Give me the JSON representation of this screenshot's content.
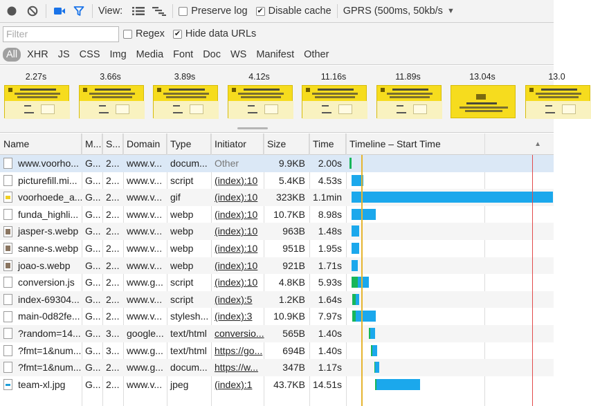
{
  "toolbar": {
    "view_label": "View:",
    "preserve_log_label": "Preserve log",
    "preserve_log_checked": false,
    "disable_cache_label": "Disable cache",
    "disable_cache_checked": true,
    "throttle_value": "GPRS (500ms, 50kb/s",
    "icons": [
      "record-icon",
      "clear-icon",
      "video-camera-icon",
      "filter-icon",
      "large-rows-icon",
      "overview-icon",
      "dropdown-arrow-icon"
    ]
  },
  "filter": {
    "placeholder": "Filter",
    "regex_label": "Regex",
    "regex_checked": false,
    "hide_data_urls_label": "Hide data URLs",
    "hide_data_urls_checked": true
  },
  "types": [
    "All",
    "XHR",
    "JS",
    "CSS",
    "Img",
    "Media",
    "Font",
    "Doc",
    "WS",
    "Manifest",
    "Other"
  ],
  "active_type": "All",
  "filmstrip": [
    {
      "time": "2.27s",
      "thumb_text": "Wij zijn DE VOORHOEDE We bouwen front-end oplossingen waarmee je jezelf onderscheidt"
    },
    {
      "time": "3.66s",
      "thumb_text": "Wij zijn DE VOORHOEDE We bouwen front-end oplossingen waarmee je jezelf onderscheidt"
    },
    {
      "time": "3.89s",
      "thumb_text": "Wij zijn DE VOORHOEDE We bouwen front-end oplossingen waarmee je jezelf onderscheidt"
    },
    {
      "time": "4.12s",
      "thumb_text": "Wij zijn DE VOORHOEDE We bouwen front-end oplossingen waarmee je jezelf onderscheidt"
    },
    {
      "time": "11.16s",
      "thumb_text": "Wij zijn DE VOORHOEDE We bouwen front-end oplossingen waarmee je jezelf onderscheidt"
    },
    {
      "time": "11.89s",
      "thumb_text": "Wij zijn DE VOORHOEDE We bouwen front-end oplossingen waarmee je jezelf onderscheidt"
    },
    {
      "time": "13.04s",
      "thumb_text": "Wij zijn DE VOORHOEDE We bouwen front-end oplossingen waarmee je jezelf onderscheidt"
    },
    {
      "time": "13.0",
      "thumb_text": "Wij zijn DE VOORHOEDE We bouwen front-end oplossingen waarmee je jezelf onderscheidt"
    }
  ],
  "columns": [
    "Name",
    "M...",
    "S...",
    "Domain",
    "Type",
    "Initiator",
    "Size",
    "Time",
    "Timeline – Start Time"
  ],
  "rows": [
    {
      "name": "www.voorho...",
      "method": "G...",
      "status": "2...",
      "domain": "www.v...",
      "type": "docum...",
      "initiator": "Other",
      "size": "9.9KB",
      "time": "2.00s",
      "icon": "doc",
      "wf_start": 0.015,
      "wf_wait": 0.011,
      "wf_recv": 0.0
    },
    {
      "name": "picturefill.mi...",
      "method": "G...",
      "status": "2...",
      "domain": "www.v...",
      "type": "script",
      "initiator": "(index):10",
      "size": "5.4KB",
      "time": "4.53s",
      "icon": "doc",
      "wf_start": 0.026,
      "wf_wait": 0.0,
      "wf_recv": 0.057
    },
    {
      "name": "voorhoede_a...",
      "method": "G...",
      "status": "2...",
      "domain": "www.v...",
      "type": "gif",
      "initiator": "(index):10",
      "size": "323KB",
      "time": "1.1min",
      "icon": "gif",
      "wf_start": 0.026,
      "wf_wait": 0.0,
      "wf_recv": 0.97
    },
    {
      "name": "funda_highli...",
      "method": "G...",
      "status": "2...",
      "domain": "www.v...",
      "type": "webp",
      "initiator": "(index):10",
      "size": "10.7KB",
      "time": "8.98s",
      "icon": "doc",
      "wf_start": 0.026,
      "wf_wait": 0.0,
      "wf_recv": 0.118
    },
    {
      "name": "jasper-s.webp",
      "method": "G...",
      "status": "2...",
      "domain": "www.v...",
      "type": "webp",
      "initiator": "(index):10",
      "size": "963B",
      "time": "1.48s",
      "icon": "img",
      "wf_start": 0.026,
      "wf_wait": 0.0,
      "wf_recv": 0.036
    },
    {
      "name": "sanne-s.webp",
      "method": "G...",
      "status": "2...",
      "domain": "www.v...",
      "type": "webp",
      "initiator": "(index):10",
      "size": "951B",
      "time": "1.95s",
      "icon": "img",
      "wf_start": 0.026,
      "wf_wait": 0.0,
      "wf_recv": 0.036
    },
    {
      "name": "joao-s.webp",
      "method": "G...",
      "status": "2...",
      "domain": "www.v...",
      "type": "webp",
      "initiator": "(index):10",
      "size": "921B",
      "time": "1.71s",
      "icon": "img",
      "wf_start": 0.026,
      "wf_wait": 0.0,
      "wf_recv": 0.031
    },
    {
      "name": "conversion.js",
      "method": "G...",
      "status": "2...",
      "domain": "www.g...",
      "type": "script",
      "initiator": "(index):10",
      "size": "4.8KB",
      "time": "5.93s",
      "icon": "doc",
      "wf_start": 0.026,
      "wf_wait": 0.031,
      "wf_recv": 0.052
    },
    {
      "name": "index-69304...",
      "method": "G...",
      "status": "2...",
      "domain": "www.v...",
      "type": "script",
      "initiator": "(index):5",
      "size": "1.2KB",
      "time": "1.64s",
      "icon": "doc",
      "wf_start": 0.03,
      "wf_wait": 0.016,
      "wf_recv": 0.016
    },
    {
      "name": "main-0d82fe...",
      "method": "G...",
      "status": "2...",
      "domain": "www.v...",
      "type": "stylesh...",
      "initiator": "(index):3",
      "size": "10.9KB",
      "time": "7.97s",
      "icon": "doc",
      "wf_start": 0.03,
      "wf_wait": 0.016,
      "wf_recv": 0.096
    },
    {
      "name": "?random=14...",
      "method": "G...",
      "status": "3...",
      "domain": "google...",
      "type": "text/html",
      "initiator": "conversio...",
      "size": "565B",
      "time": "1.40s",
      "icon": "doc",
      "wf_start": 0.11,
      "wf_wait": 0.005,
      "wf_recv": 0.026
    },
    {
      "name": "?fmt=1&num...",
      "method": "G...",
      "status": "3...",
      "domain": "www.g...",
      "type": "text/html",
      "initiator": "https://go...",
      "size": "694B",
      "time": "1.40s",
      "icon": "doc",
      "wf_start": 0.12,
      "wf_wait": 0.005,
      "wf_recv": 0.026
    },
    {
      "name": "?fmt=1&num...",
      "method": "G...",
      "status": "2...",
      "domain": "www.g...",
      "type": "docum...",
      "initiator": "https://w...",
      "size": "347B",
      "time": "1.17s",
      "icon": "doc",
      "wf_start": 0.135,
      "wf_wait": 0.005,
      "wf_recv": 0.021
    },
    {
      "name": "team-xl.jpg",
      "method": "G...",
      "status": "2...",
      "domain": "www.v...",
      "type": "jpeg",
      "initiator": "(index):1",
      "size": "43.7KB",
      "time": "14.51s",
      "icon": "blue",
      "wf_start": 0.14,
      "wf_wait": 0.005,
      "wf_recv": 0.21
    }
  ],
  "colors": {
    "waiting": "#17b65a",
    "receiving": "#1ba8ec",
    "dom_content_loaded": "#e6b530",
    "load_event": "#e24b4b",
    "selected_row": "#dbe8f6"
  }
}
